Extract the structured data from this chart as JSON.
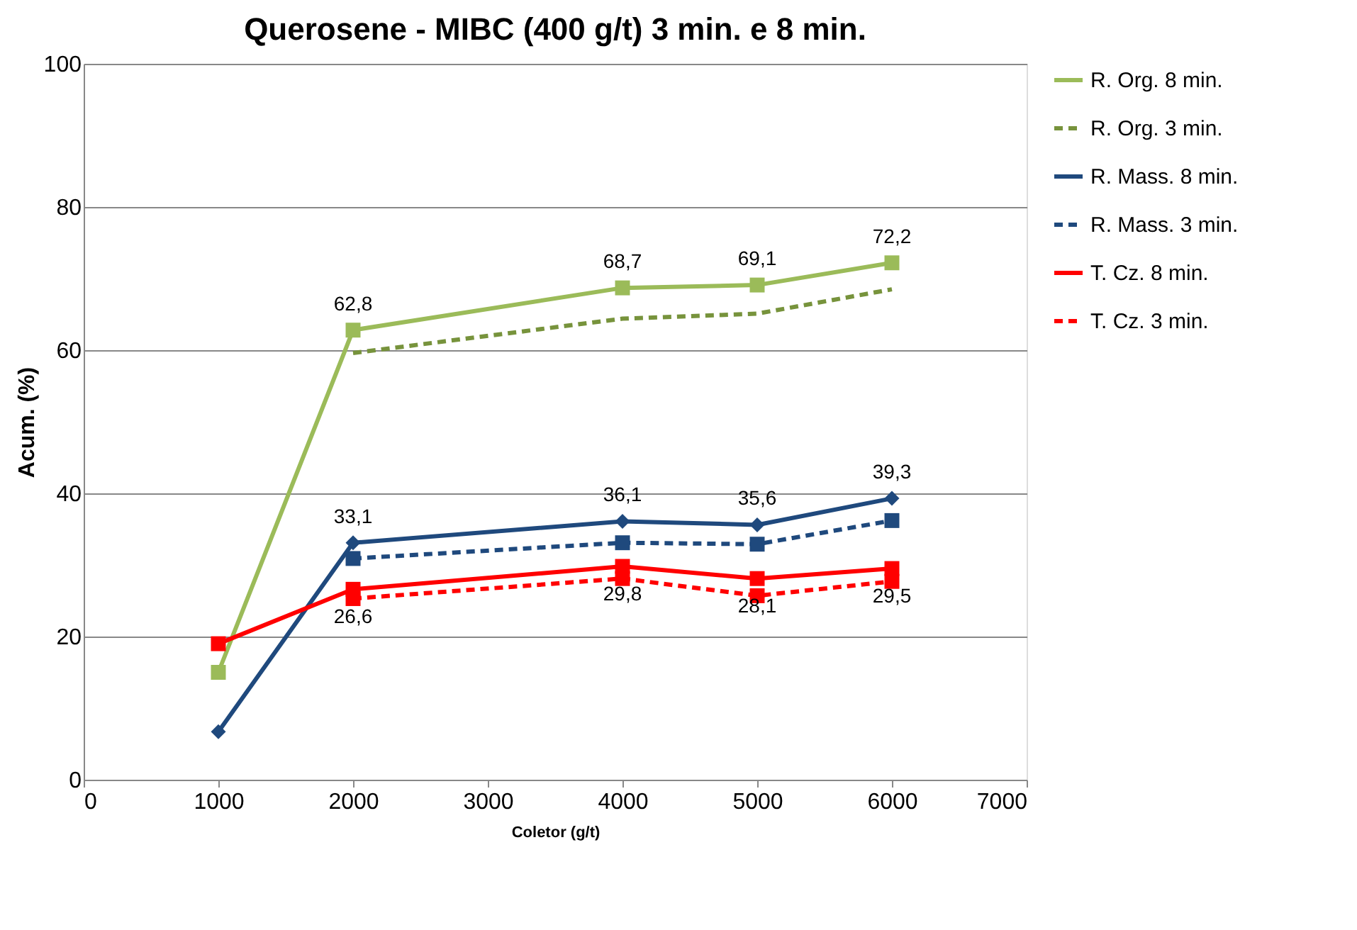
{
  "chart_data": {
    "type": "line",
    "title": "Querosene - MIBC  (400 g/t)  3 min. e 8 min.",
    "xlabel": "Coletor (g/t)",
    "ylabel": "Acum. (%)",
    "x": [
      1000,
      2000,
      4000,
      5000,
      6000
    ],
    "series": [
      {
        "name": "R. Org. 8 min.",
        "color": "#9bbb59",
        "values": [
          15.0,
          62.8,
          68.7,
          69.1,
          72.2
        ],
        "marker": "square",
        "line_style": "solid",
        "value_labels": [
          null,
          "62,8",
          "68,7",
          "69,1",
          "72,2"
        ]
      },
      {
        "name": "R. Org. 3 min.",
        "color": "#77933c",
        "values": [
          null,
          59.6,
          64.4,
          65.1,
          68.5
        ],
        "marker": "none",
        "line_style": "dashed"
      },
      {
        "name": "R. Mass. 8 min.",
        "color": "#1f497d",
        "values": [
          6.7,
          33.1,
          36.1,
          35.6,
          39.3
        ],
        "marker": "diamond",
        "line_style": "solid",
        "value_labels": [
          null,
          "33,1",
          "36,1",
          "35,6",
          "39,3"
        ]
      },
      {
        "name": "R. Mass. 3 min.",
        "color": "#1f497d",
        "values": [
          null,
          30.9,
          33.1,
          32.9,
          36.2
        ],
        "marker": "square",
        "line_style": "dashed"
      },
      {
        "name": "T. Cz. 8 min.",
        "color": "#ff0000",
        "values": [
          19.0,
          26.6,
          29.8,
          28.1,
          29.5
        ],
        "marker": "square",
        "line_style": "solid",
        "value_labels": [
          null,
          "26,6",
          "29,8",
          "28,1",
          "29,5"
        ]
      },
      {
        "name": "T. Cz. 3 min.",
        "color": "#ff0000",
        "values": [
          null,
          25.3,
          28.1,
          25.7,
          27.7
        ],
        "marker": "square",
        "line_style": "dashed"
      }
    ],
    "xlim": [
      0,
      7000
    ],
    "xticks": [
      0,
      1000,
      2000,
      3000,
      4000,
      5000,
      6000,
      7000
    ],
    "ylim": [
      0,
      100
    ],
    "yticks": [
      0,
      20,
      40,
      60,
      80,
      100
    ],
    "grid": "y",
    "legend": "right"
  }
}
